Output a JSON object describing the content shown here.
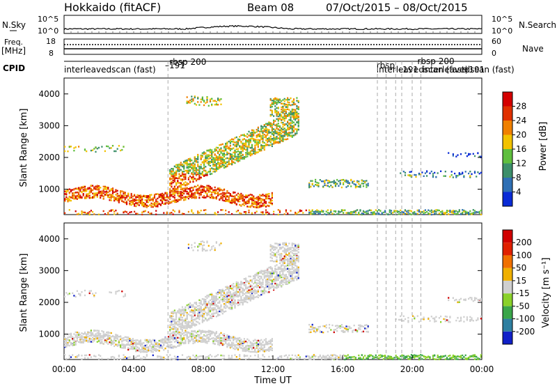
{
  "header": {
    "site": "Hokkaido (fitACF)",
    "beam": "Beam 08",
    "dates": "07/Oct/2015 – 08/Oct/2015"
  },
  "noise_panel": {
    "left_label": "N.Sky",
    "right_label": "N.Search",
    "left_ticks": [
      "10^5",
      "10^0"
    ],
    "right_ticks": [
      "10^5",
      "10^0"
    ]
  },
  "freq_panel": {
    "left_label_1": "Freq.",
    "left_label_2": "[MHz]",
    "right_label": "Nave",
    "left_ticks": [
      "18",
      "8"
    ],
    "right_ticks": [
      "60",
      "0"
    ]
  },
  "cpid_panel": {
    "label": "CPID",
    "labels": [
      {
        "text": "interleavedscan (fast)",
        "hour": 0.0
      },
      {
        "text": "–191",
        "hour": 5.8
      },
      {
        "text": "rbsp 200",
        "hour": 6.05
      },
      {
        "text": "rbsp",
        "hour": 17.95
      },
      {
        "text": "interleavedscan (fast)",
        "hour": 17.95
      },
      {
        "text": "–191",
        "hour": 19.2
      },
      {
        "text": "rbsp 200",
        "hour": 20.3
      },
      {
        "text": "interleavedscan (fast)",
        "hour": 20.6
      },
      {
        "text": "+191",
        "hour": 22.85
      }
    ]
  },
  "chart_data": [
    {
      "type": "heatmap",
      "panel": "power",
      "ylabel": "Slant Range [km]",
      "ylim": [
        200,
        4500
      ],
      "yticks": [
        1000,
        2000,
        3000,
        4000
      ],
      "xlim": [
        0,
        24
      ],
      "colorbar_label": "Power [dB]",
      "colorbar_ticks": [
        4,
        8,
        12,
        16,
        20,
        24,
        28
      ],
      "colors": [
        "#0a2bd6",
        "#2f6fb4",
        "#3c8f6a",
        "#5fbf3e",
        "#f2c200",
        "#f08000",
        "#e03000",
        "#d40000"
      ],
      "mode_change_hours": [
        5.97,
        18.0,
        18.5,
        19.05,
        19.4,
        20.0,
        20.5
      ]
    },
    {
      "type": "heatmap",
      "panel": "velocity",
      "ylabel": "Slant Range [km]",
      "ylim": [
        200,
        4500
      ],
      "yticks": [
        1000,
        2000,
        3000,
        4000
      ],
      "xlim": [
        0,
        24
      ],
      "colorbar_label": "Velocity [m s⁻¹]",
      "colorbar_ticks": [
        "200",
        "100",
        "50",
        "15",
        "-15",
        "-50",
        "-100",
        "-200"
      ],
      "colors": [
        "#1020c8",
        "#2e7fa0",
        "#3aa64a",
        "#8ad12a",
        "#cfcfcf",
        "#f0b000",
        "#f07000",
        "#e02000",
        "#d00000"
      ],
      "mode_change_hours": [
        5.97,
        18.0,
        18.5,
        19.05,
        19.4,
        20.0,
        20.5
      ]
    }
  ],
  "xaxis": {
    "ticks": [
      "00:00",
      "04:00",
      "08:00",
      "12:00",
      "16:00",
      "20:00",
      "00:00"
    ],
    "label": "Time UT"
  }
}
